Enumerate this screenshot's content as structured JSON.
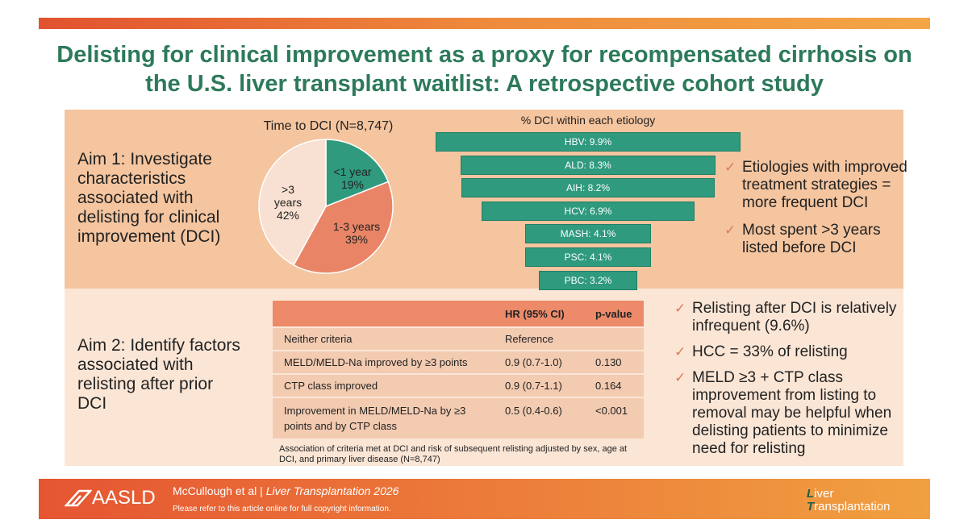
{
  "title": "Delisting for clinical improvement as a proxy for recompensated cirrhosis on the U.S. liver transplant waitlist: A retrospective cohort study",
  "aim1": "Aim 1: Investigate characteristics associated with delisting for clinical improvement (DCI)",
  "aim2": "Aim 2: Identify factors associated with relisting after prior DCI",
  "bullets1": [
    "Etiologies with improved treatment strategies = more frequent DCI",
    "Most spent >3 years listed before DCI"
  ],
  "bullets2": [
    "Relisting after DCI is relatively infrequent (9.6%)",
    "HCC = 33% of relisting",
    "MELD ≥3 + CTP class improvement from listing to removal may be helpful when delisting patients to minimize need for relisting"
  ],
  "chart_data": [
    {
      "type": "pie",
      "title": "Time to DCI (N=8,747)",
      "slices": [
        {
          "label": "<1 year",
          "value": 19,
          "display": "19%",
          "color": "#2f9a7e"
        },
        {
          "label": "1-3 years",
          "value": 39,
          "display": "39%",
          "color": "#e98566"
        },
        {
          "label": ">3 years",
          "value": 42,
          "display": "42%",
          "color": "#f8e1d2"
        }
      ]
    },
    {
      "type": "bar",
      "orientation": "horizontal-centered",
      "title": "% DCI within each etiology",
      "categories": [
        "HBV",
        "ALD",
        "AIH",
        "HCV",
        "MASH",
        "PSC",
        "PBC"
      ],
      "values": [
        9.9,
        8.3,
        8.2,
        6.9,
        4.1,
        4.1,
        3.2
      ],
      "labels": [
        "HBV: 9.9%",
        "ALD: 8.3%",
        "AIH: 8.2%",
        "HCV: 6.9%",
        "MASH: 4.1%",
        "PSC: 4.1%",
        "PBC: 3.2%"
      ],
      "color": "#2f9a7e"
    },
    {
      "type": "table",
      "headers": [
        "",
        "HR (95% CI)",
        "p-value"
      ],
      "rows": [
        [
          "Neither criteria",
          "Reference",
          ""
        ],
        [
          "MELD/MELD-Na improved by ≥3 points",
          "0.9 (0.7-1.0)",
          "0.130"
        ],
        [
          "CTP class improved",
          "0.9 (0.7-1.1)",
          "0.164"
        ],
        [
          "Improvement in MELD/MELD-Na by ≥3 points and by CTP class",
          "0.5 (0.4-0.6)",
          "<0.001"
        ]
      ],
      "footnote": "Association of criteria met at DCI and risk of subsequent relisting adjusted by sex, age at DCI, and primary liver disease   (N=8,747)"
    }
  ],
  "footer": {
    "logo": "AASLD",
    "citation_authors": "McCullough et al",
    "citation_sep": " | ",
    "citation_journal": "Liver Transplantation 2026",
    "copyright": "Please refer to this article online for full copyright information.",
    "journal_line1_first": "L",
    "journal_line1_rest": "iver",
    "journal_line2_first": "T",
    "journal_line2_rest": "ransplantation"
  }
}
